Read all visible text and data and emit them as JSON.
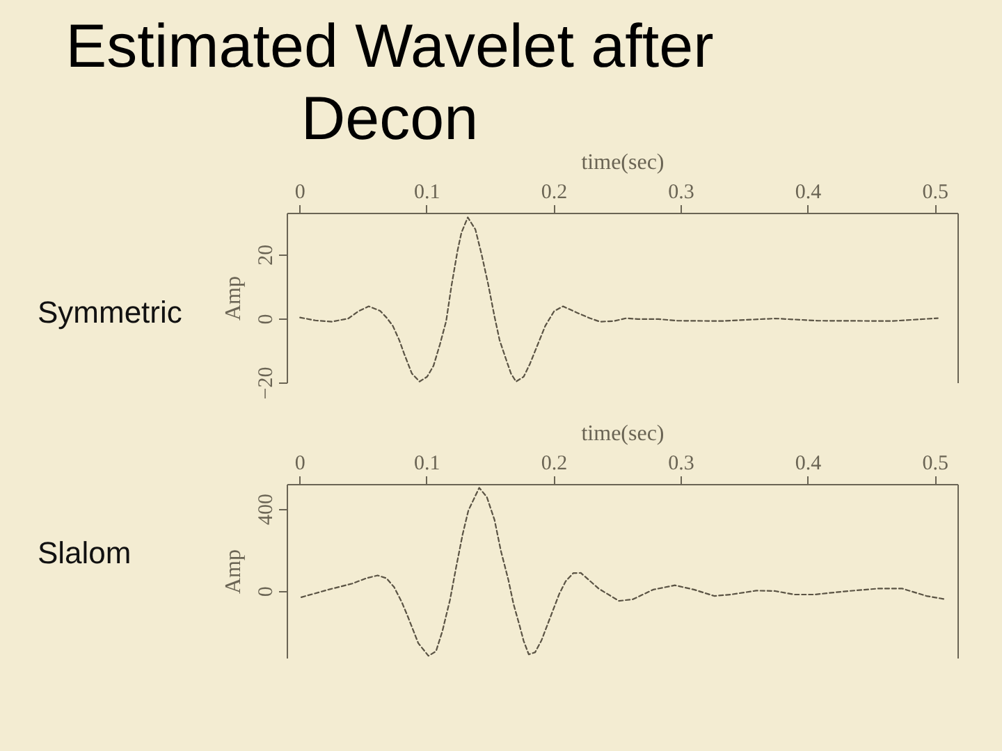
{
  "chart_data": [
    {
      "type": "line",
      "title": "Estimated Wavelet after Decon",
      "xlabel": "time(sec)",
      "ylabel": "Amp",
      "annotations": [
        "Symmetric"
      ],
      "grid": false,
      "line_style": "dashed",
      "xlim": [
        -0.01,
        0.518
      ],
      "ylim": [
        -20,
        33
      ],
      "xticks": [
        0,
        0.1,
        0.2,
        0.3,
        0.4,
        0.5
      ],
      "yticks": [
        -20,
        0,
        20
      ],
      "x": [
        0.0,
        0.012,
        0.025,
        0.038,
        0.046,
        0.054,
        0.063,
        0.068,
        0.073,
        0.078,
        0.082,
        0.088,
        0.094,
        0.1,
        0.105,
        0.11,
        0.115,
        0.119,
        0.124,
        0.127,
        0.132,
        0.138,
        0.143,
        0.148,
        0.153,
        0.157,
        0.162,
        0.166,
        0.17,
        0.176,
        0.181,
        0.187,
        0.193,
        0.2,
        0.207,
        0.218,
        0.228,
        0.236,
        0.247,
        0.257,
        0.266,
        0.282,
        0.297,
        0.332,
        0.374,
        0.408,
        0.466,
        0.502
      ],
      "series": [
        {
          "color": "#5a5344",
          "values": [
            0.5,
            -0.4,
            -0.8,
            0.2,
            2.5,
            4.0,
            2.6,
            0.5,
            -2.1,
            -6.5,
            -10.9,
            -17.0,
            -19.5,
            -18.0,
            -14.6,
            -8.0,
            -0.6,
            10.0,
            21.5,
            27.0,
            31.8,
            28.0,
            20.0,
            11.0,
            0.9,
            -6.5,
            -12.4,
            -17.0,
            -19.5,
            -18.0,
            -13.9,
            -8.0,
            -2.1,
            2.5,
            4.0,
            2.0,
            0.3,
            -0.8,
            -0.6,
            0.3,
            0.0,
            0.0,
            -0.5,
            -0.6,
            0.2,
            -0.5,
            -0.6,
            0.3
          ]
        }
      ]
    },
    {
      "type": "line",
      "xlabel": "time(sec)",
      "ylabel": "Amp",
      "annotations": [
        "Slalom"
      ],
      "grid": false,
      "line_style": "dashed",
      "xlim": [
        -0.01,
        0.518
      ],
      "ylim": [
        -325,
        520
      ],
      "xticks": [
        0,
        0.1,
        0.2,
        0.3,
        0.4,
        0.5
      ],
      "yticks": [
        0,
        400
      ],
      "x": [
        0.001,
        0.023,
        0.041,
        0.052,
        0.061,
        0.068,
        0.074,
        0.08,
        0.085,
        0.093,
        0.101,
        0.107,
        0.112,
        0.118,
        0.123,
        0.128,
        0.1325,
        0.141,
        0.147,
        0.153,
        0.158,
        0.164,
        0.168,
        0.173,
        0.176,
        0.18,
        0.185,
        0.19,
        0.196,
        0.204,
        0.209,
        0.215,
        0.221,
        0.235,
        0.251,
        0.262,
        0.278,
        0.295,
        0.31,
        0.326,
        0.339,
        0.359,
        0.374,
        0.389,
        0.405,
        0.428,
        0.455,
        0.474,
        0.493,
        0.508
      ],
      "series": [
        {
          "color": "#5a5344",
          "values": [
            -27,
            11,
            39,
            65,
            79,
            65,
            22,
            -50,
            -124,
            -250,
            -312,
            -290,
            -192,
            -40,
            124,
            280,
            395,
            505,
            460,
            350,
            200,
            56,
            -60,
            -170,
            -240,
            -305,
            -295,
            -237,
            -140,
            -11,
            50,
            90,
            91,
            15,
            -45,
            -37,
            10,
            31,
            10,
            -21,
            -14,
            5,
            3,
            -14,
            -14,
            1,
            15,
            15,
            -21,
            -37
          ]
        }
      ]
    }
  ]
}
